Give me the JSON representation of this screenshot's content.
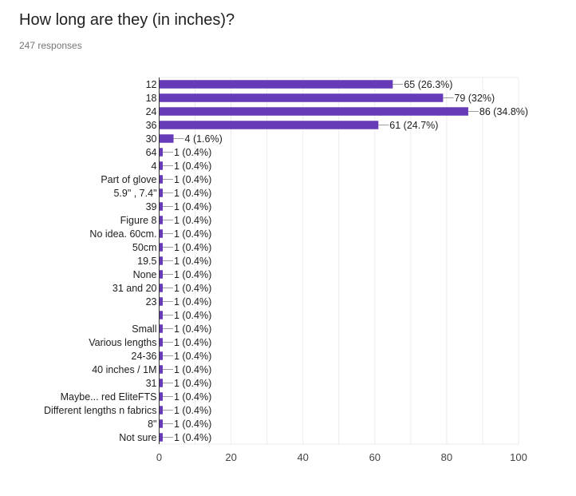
{
  "question": {
    "title": "How long are they (in inches)?",
    "responses": "247 responses"
  },
  "colors": {
    "bar": "#673ab7",
    "grid": "#ebebeb",
    "axis": "#333333",
    "text": "#212121",
    "leader": "#9e9e9e"
  },
  "chart_data": {
    "type": "bar",
    "orientation": "horizontal",
    "categories": [
      "12",
      "18",
      "24",
      "36",
      "30",
      "64",
      "4",
      "Part of glove",
      "5.9\" , 7.4\"",
      "39",
      "Figure 8",
      "No idea. 60cm.",
      "50cm",
      "19.5",
      "None",
      "31 and 20",
      "23",
      "",
      "Small",
      "Various lengths",
      "24-36",
      "40 inches / 1M",
      "31",
      "Maybe... red EliteFTS",
      "Different lengths n fabrics",
      "8\"",
      "Not sure"
    ],
    "values": [
      65,
      79,
      86,
      61,
      4,
      1,
      1,
      1,
      1,
      1,
      1,
      1,
      1,
      1,
      1,
      1,
      1,
      1,
      1,
      1,
      1,
      1,
      1,
      1,
      1,
      1,
      1
    ],
    "data_labels": [
      "65 (26.3%)",
      "79 (32%)",
      "86 (34.8%)",
      "61 (24.7%)",
      "4 (1.6%)",
      "1 (0.4%)",
      "1 (0.4%)",
      "1 (0.4%)",
      "1 (0.4%)",
      "1 (0.4%)",
      "1 (0.4%)",
      "1 (0.4%)",
      "1 (0.4%)",
      "1 (0.4%)",
      "1 (0.4%)",
      "1 (0.4%)",
      "1 (0.4%)",
      "1 (0.4%)",
      "1 (0.4%)",
      "1 (0.4%)",
      "1 (0.4%)",
      "1 (0.4%)",
      "1 (0.4%)",
      "1 (0.4%)",
      "1 (0.4%)",
      "1 (0.4%)",
      "1 (0.4%)"
    ],
    "xlim": [
      0,
      100
    ],
    "xticks": [
      0,
      20,
      40,
      60,
      80,
      100
    ],
    "grid": true
  }
}
